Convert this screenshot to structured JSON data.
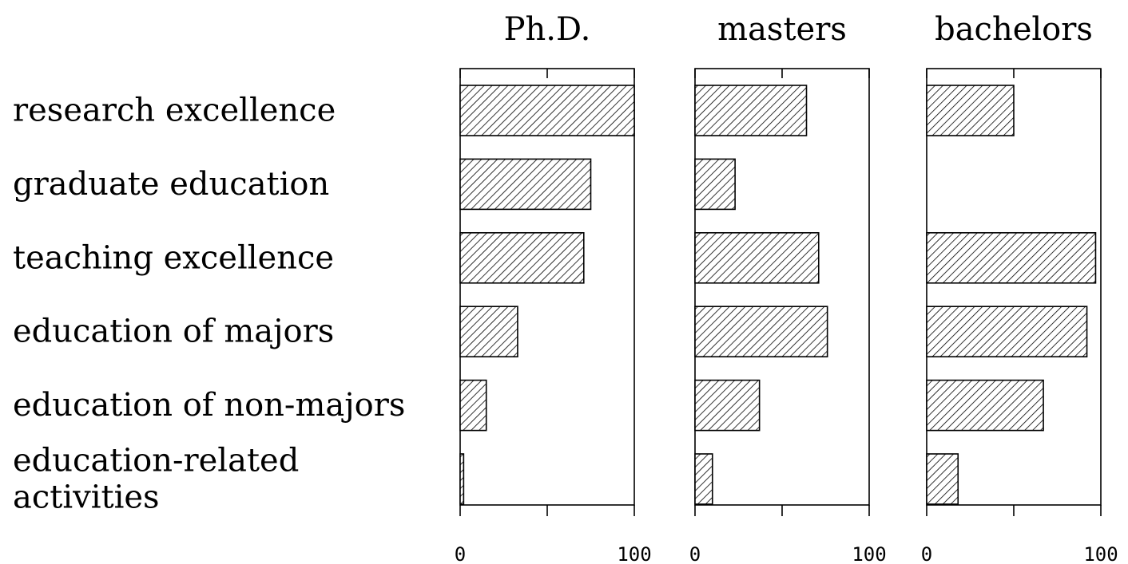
{
  "chart_data": {
    "type": "bar",
    "orientation": "horizontal",
    "categories": [
      "research excellence",
      "graduate education",
      "teaching excellence",
      "education of majors",
      "education of non-majors",
      "education-related activities"
    ],
    "category_label_lines": [
      [
        "research excellence"
      ],
      [
        "graduate education"
      ],
      [
        "teaching excellence"
      ],
      [
        "education of majors"
      ],
      [
        "education of non-majors"
      ],
      [
        "education-related",
        "activities"
      ]
    ],
    "panels": [
      {
        "title": "Ph.D.",
        "values": [
          100,
          75,
          71,
          33,
          15,
          2
        ]
      },
      {
        "title": "masters",
        "values": [
          64,
          23,
          71,
          76,
          37,
          10
        ]
      },
      {
        "title": "bachelors",
        "values": [
          50,
          0,
          97,
          92,
          67,
          18
        ]
      }
    ],
    "xlim": [
      0,
      100
    ],
    "x_tick_labels": [
      "0",
      "100"
    ],
    "bar_fill": "hatched",
    "grid": false,
    "legend": "none"
  }
}
